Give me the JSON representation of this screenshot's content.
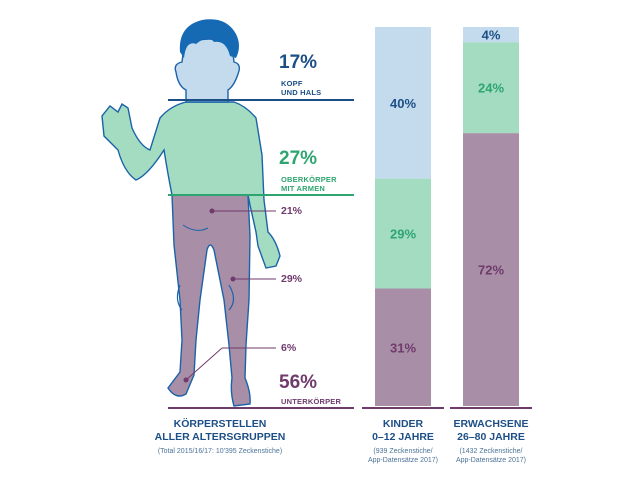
{
  "colors": {
    "head": "#c4dbee",
    "upper": "#a3dcc1",
    "lower": "#a98ea7",
    "outline": "#1a63a8",
    "head_text": "#1c4f86",
    "upper_text": "#2ea570",
    "lower_text": "#6f3a6c",
    "hair": "#1669b3"
  },
  "body_labels": {
    "head_pct": "17%",
    "head_label_1": "KOPF",
    "head_label_2": "UND HALS",
    "upper_pct": "27%",
    "upper_label_1": "OBERKÖRPER",
    "upper_label_2": "MIT ARMEN",
    "lower_pct": "56%",
    "lower_label": "UNTERKÖRPER",
    "sub_1": "21%",
    "sub_2": "29%",
    "sub_3": "6%"
  },
  "captions": {
    "all_title_1": "KÖRPERSTELLEN",
    "all_title_2": "ALLER ALTERSGRUPPEN",
    "all_note": "(Total 2015/16/17: 10'395 Zeckenstiche)",
    "kids_title_1": "KINDER",
    "kids_title_2": "0–12 JAHRE",
    "kids_note_1": "(939 Zeckenstiche/",
    "kids_note_2": "App-Datensätze 2017)",
    "adults_title_1": "ERWACHSENE",
    "adults_title_2": "26–80 JAHRE",
    "adults_note_1": "(1432 Zeckenstiche/",
    "adults_note_2": "App-Datensätze 2017)"
  },
  "chart_data": {
    "type": "bar",
    "stacked": true,
    "categories": [
      "KINDER 0–12 JAHRE",
      "ERWACHSENE 26–80 JAHRE"
    ],
    "series": [
      {
        "name": "UNTERKÖRPER",
        "values": [
          31,
          72
        ],
        "labels": [
          "31%",
          "72%"
        ],
        "color": "#a98ea7"
      },
      {
        "name": "OBERKÖRPER MIT ARMEN",
        "values": [
          29,
          24
        ],
        "labels": [
          "29%",
          "24%"
        ],
        "color": "#a3dcc1"
      },
      {
        "name": "KOPF UND HALS",
        "values": [
          40,
          4
        ],
        "labels": [
          "40%",
          "4%"
        ],
        "color": "#c4dbee"
      }
    ],
    "ylim": [
      0,
      100
    ]
  }
}
